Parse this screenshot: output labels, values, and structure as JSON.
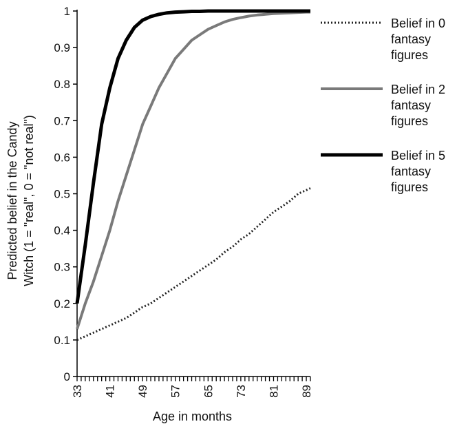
{
  "chart_data": {
    "type": "line",
    "title": "",
    "xlabel": "Age in months",
    "ylabel_lines": [
      "Predicted belief in the Candy",
      "Witch (1 = \"real\", 0 = \"not real\")"
    ],
    "xlim": [
      33,
      90
    ],
    "ylim": [
      0,
      1
    ],
    "x_ticks": [
      33,
      41,
      49,
      57,
      65,
      73,
      81,
      89
    ],
    "y_ticks": [
      0,
      0.1,
      0.2,
      0.3,
      0.4,
      0.5,
      0.6,
      0.7,
      0.8,
      0.9,
      1
    ],
    "y_tick_labels": [
      "0",
      "0.1",
      "0.2",
      "0.3",
      "0.4",
      "0.5",
      "0.6",
      "0.7",
      "0.8",
      "0.9",
      "1"
    ],
    "x": [
      33,
      35,
      37,
      39,
      41,
      43,
      45,
      47,
      49,
      51,
      53,
      55,
      57,
      59,
      61,
      63,
      65,
      67,
      69,
      71,
      73,
      75,
      77,
      79,
      81,
      83,
      85,
      87,
      89,
      90
    ],
    "series": [
      {
        "legend_lines": [
          "Belief in 0",
          "fantasy",
          "figures"
        ],
        "color": "#222222",
        "style": "dotted",
        "values": [
          0.1,
          0.11,
          0.12,
          0.13,
          0.14,
          0.15,
          0.16,
          0.175,
          0.19,
          0.2,
          0.215,
          0.23,
          0.245,
          0.26,
          0.275,
          0.29,
          0.305,
          0.32,
          0.34,
          0.355,
          0.375,
          0.39,
          0.41,
          0.43,
          0.45,
          0.465,
          0.48,
          0.5,
          0.51,
          0.515
        ]
      },
      {
        "legend_lines": [
          "Belief in 2",
          "fantasy",
          "figures"
        ],
        "color": "#7a7a7a",
        "style": "solid",
        "values": [
          0.13,
          0.2,
          0.26,
          0.33,
          0.4,
          0.48,
          0.55,
          0.62,
          0.69,
          0.74,
          0.79,
          0.83,
          0.87,
          0.895,
          0.92,
          0.935,
          0.95,
          0.96,
          0.97,
          0.977,
          0.982,
          0.986,
          0.989,
          0.991,
          0.993,
          0.994,
          0.995,
          0.996,
          0.997,
          0.997
        ]
      },
      {
        "legend_lines": [
          "Belief in 5",
          "fantasy",
          "figures"
        ],
        "color": "#000000",
        "style": "solid",
        "values": [
          0.2,
          0.36,
          0.53,
          0.69,
          0.79,
          0.87,
          0.92,
          0.955,
          0.975,
          0.985,
          0.991,
          0.995,
          0.997,
          0.998,
          0.999,
          0.999,
          1.0,
          1.0,
          1.0,
          1.0,
          1.0,
          1.0,
          1.0,
          1.0,
          1.0,
          1.0,
          1.0,
          1.0,
          1.0,
          1.0
        ]
      }
    ]
  }
}
